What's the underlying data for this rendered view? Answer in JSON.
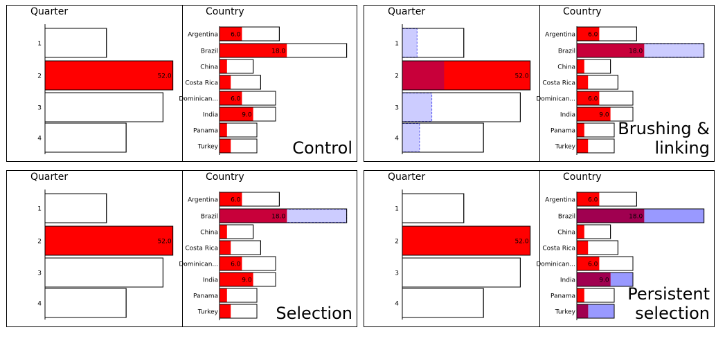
{
  "colors": {
    "selected": "#ff0000",
    "brushed": "#ccccff",
    "brushed_stroke": "#5555ee",
    "overlap_brush": "#c8003a",
    "persistent": "#9999ff",
    "overlap_persistent": "#a00050",
    "outline": "#000000"
  },
  "chart_data": [
    {
      "id": "control",
      "type": "bar",
      "condition_label": [
        "Control"
      ],
      "quarter": {
        "title": "Quarter",
        "categories": [
          "1",
          "2",
          "3",
          "4"
        ],
        "totals": [
          25,
          52,
          48,
          33
        ],
        "selected": [
          0,
          52,
          0,
          0
        ],
        "highlight": [
          0,
          0,
          0,
          0
        ],
        "highlight_style": "none",
        "labels": [
          "",
          "52.0",
          "",
          ""
        ]
      },
      "country": {
        "title": "Country",
        "categories": [
          "Argentina",
          "Brazil",
          "China",
          "Costa Rica",
          "Dominican...",
          "India",
          "Panama",
          "Turkey"
        ],
        "totals": [
          16,
          34,
          9,
          11,
          15,
          15,
          10,
          10
        ],
        "selected": [
          6,
          18,
          2,
          3,
          6,
          9,
          2,
          3
        ],
        "highlight": [
          0,
          0,
          0,
          0,
          0,
          0,
          0,
          0
        ],
        "highlight_style": "none",
        "labels": [
          "6.0",
          "18.0",
          "",
          "",
          "6.0",
          "9.0",
          "",
          ""
        ]
      }
    },
    {
      "id": "brushing",
      "type": "bar",
      "condition_label": [
        "Brushing &",
        "linking"
      ],
      "quarter": {
        "title": "Quarter",
        "categories": [
          "1",
          "2",
          "3",
          "4"
        ],
        "totals": [
          25,
          52,
          48,
          33
        ],
        "selected": [
          0,
          52,
          0,
          0
        ],
        "highlight": [
          6,
          17,
          12,
          7
        ],
        "highlight_style": "brush",
        "labels": [
          "",
          "52.0",
          "",
          ""
        ]
      },
      "country": {
        "title": "Country",
        "categories": [
          "Argentina",
          "Brazil",
          "China",
          "Costa Rica",
          "Dominican...",
          "India",
          "Panama",
          "Turkey"
        ],
        "totals": [
          16,
          34,
          9,
          11,
          15,
          15,
          10,
          10
        ],
        "selected": [
          6,
          18,
          2,
          3,
          6,
          9,
          2,
          3
        ],
        "highlight": [
          0,
          34,
          0,
          0,
          0,
          0,
          0,
          0
        ],
        "highlight_style": "brush",
        "labels": [
          "6.0",
          "18.0",
          "",
          "",
          "6.0",
          "9.0",
          "",
          ""
        ]
      }
    },
    {
      "id": "selection",
      "type": "bar",
      "condition_label": [
        "Selection"
      ],
      "quarter": {
        "title": "Quarter",
        "categories": [
          "1",
          "2",
          "3",
          "4"
        ],
        "totals": [
          25,
          52,
          48,
          33
        ],
        "selected": [
          0,
          52,
          0,
          0
        ],
        "highlight": [
          0,
          0,
          0,
          0
        ],
        "highlight_style": "none",
        "labels": [
          "",
          "52.0",
          "",
          ""
        ]
      },
      "country": {
        "title": "Country",
        "categories": [
          "Argentina",
          "Brazil",
          "China",
          "Costa Rica",
          "Dominican...",
          "India",
          "Panama",
          "Turkey"
        ],
        "totals": [
          16,
          34,
          9,
          11,
          15,
          15,
          10,
          10
        ],
        "selected": [
          6,
          18,
          2,
          3,
          6,
          9,
          2,
          3
        ],
        "highlight": [
          0,
          34,
          0,
          0,
          0,
          0,
          0,
          0
        ],
        "highlight_style": "brush",
        "labels": [
          "6.0",
          "18.0",
          "",
          "",
          "6.0",
          "9.0",
          "",
          ""
        ]
      }
    },
    {
      "id": "persistent",
      "type": "bar",
      "condition_label": [
        "Persistent",
        "selection"
      ],
      "quarter": {
        "title": "Quarter",
        "categories": [
          "1",
          "2",
          "3",
          "4"
        ],
        "totals": [
          25,
          52,
          48,
          33
        ],
        "selected": [
          0,
          52,
          0,
          0
        ],
        "highlight": [
          0,
          0,
          0,
          0
        ],
        "highlight_style": "none",
        "labels": [
          "",
          "52.0",
          "",
          ""
        ]
      },
      "country": {
        "title": "Country",
        "categories": [
          "Argentina",
          "Brazil",
          "China",
          "Costa Rica",
          "Dominican...",
          "India",
          "Panama",
          "Turkey"
        ],
        "totals": [
          16,
          34,
          9,
          11,
          15,
          15,
          10,
          10
        ],
        "selected": [
          6,
          18,
          2,
          3,
          6,
          9,
          2,
          3
        ],
        "highlight": [
          0,
          34,
          0,
          0,
          0,
          15,
          0,
          10
        ],
        "highlight_style": "persistent",
        "labels": [
          "6.0",
          "18.0",
          "",
          "",
          "6.0",
          "9.0",
          "",
          ""
        ]
      }
    }
  ]
}
